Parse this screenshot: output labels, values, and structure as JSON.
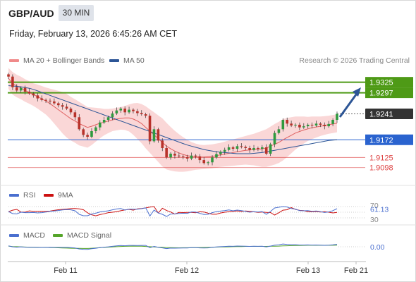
{
  "header": {
    "pair": "GBP/AUD",
    "timeframe": "30 MIN",
    "timestamp": "Friday, February 13, 2026 6:45:26 AM CET",
    "credit": "Research © 2026 Trading Central"
  },
  "legends": {
    "ma20": {
      "label": "MA 20 + Bollinger Bands",
      "color": "#f08a8a"
    },
    "ma50": {
      "label": "MA 50",
      "color": "#2c5596"
    },
    "rsi": {
      "label": "RSI",
      "color": "#4a6fcf"
    },
    "rsi_ma": {
      "label": "9MA",
      "color": "#cc1111"
    },
    "macd": {
      "label": "MACD",
      "color": "#4a6fcf"
    },
    "macd_signal": {
      "label": "MACD Signal",
      "color": "#55a52a"
    }
  },
  "chart_data": {
    "type": "candlestick",
    "y_range": [
      1.906,
      1.936
    ],
    "levels": [
      {
        "value": 1.9325,
        "label": "1.9325",
        "kind": "resistance",
        "color": "#4e9a16"
      },
      {
        "value": 1.9297,
        "label": "1.9297",
        "kind": "resistance",
        "color": "#4e9a16"
      },
      {
        "value": 1.9241,
        "label": "1.9241",
        "kind": "current",
        "color": "#333333"
      },
      {
        "value": 1.9172,
        "label": "1.9172",
        "kind": "pivot",
        "color": "#2a63cf"
      },
      {
        "value": 1.9125,
        "label": "1.9125",
        "kind": "support",
        "color": "#dd4444"
      },
      {
        "value": 1.9098,
        "label": "1.9098",
        "kind": "support",
        "color": "#dd4444"
      }
    ],
    "x_labels": [
      "Feb 11",
      "Feb 12",
      "Feb 13",
      "Feb 21"
    ],
    "closes": [
      1.934,
      1.9312,
      1.9303,
      1.931,
      1.93,
      1.9295,
      1.929,
      1.9282,
      1.9278,
      1.9276,
      1.9274,
      1.9269,
      1.9264,
      1.926,
      1.9255,
      1.9245,
      1.9232,
      1.92,
      1.9185,
      1.918,
      1.9195,
      1.9205,
      1.9218,
      1.9225,
      1.9232,
      1.9242,
      1.925,
      1.9255,
      1.9245,
      1.9252,
      1.9248,
      1.9243,
      1.924,
      1.9236,
      1.9168,
      1.92,
      1.917,
      1.915,
      1.9125,
      1.9135,
      1.913,
      1.9128,
      1.9126,
      1.9122,
      1.913,
      1.9128,
      1.9118,
      1.911,
      1.9112,
      1.9125,
      1.9134,
      1.914,
      1.9145,
      1.9152,
      1.9148,
      1.9155,
      1.9153,
      1.915,
      1.9145,
      1.915,
      1.9148,
      1.9152,
      1.9135,
      1.916,
      1.919,
      1.92,
      1.9225,
      1.9215,
      1.921,
      1.9212,
      1.9205,
      1.9208,
      1.9212,
      1.921,
      1.9215,
      1.9212,
      1.9208,
      1.9214,
      1.9225,
      1.9241
    ],
    "ma20": [
      1.9335,
      1.9322,
      1.9315,
      1.931,
      1.9303,
      1.9298,
      1.9292,
      1.9287,
      1.9281,
      1.9275,
      1.9268,
      1.926,
      1.9252,
      1.9244,
      1.9236,
      1.9228,
      1.9222,
      1.9215,
      1.921,
      1.9205,
      1.9208,
      1.9212,
      1.9216,
      1.9219,
      1.9222,
      1.9225,
      1.9227,
      1.9229,
      1.923,
      1.923,
      1.9227,
      1.9222,
      1.9215,
      1.9205,
      1.9195,
      1.9185,
      1.9175,
      1.9165,
      1.9155,
      1.9148,
      1.9142,
      1.9137,
      1.9133,
      1.913,
      1.9128,
      1.9127,
      1.9126,
      1.9126,
      1.9127,
      1.9128,
      1.913,
      1.9132,
      1.9134,
      1.9136,
      1.9138,
      1.914,
      1.9142,
      1.9144,
      1.9145,
      1.9146,
      1.9147,
      1.9148,
      1.915,
      1.9155,
      1.916,
      1.9165,
      1.9172,
      1.9178,
      1.9184,
      1.919,
      1.9194,
      1.9198,
      1.9201,
      1.9204,
      1.9206,
      1.9208,
      1.921,
      1.9212,
      1.9214,
      1.9216
    ],
    "band_width": [
      0.0028,
      0.003,
      0.003,
      0.003,
      0.003,
      0.003,
      0.003,
      0.0032,
      0.0034,
      0.0036,
      0.004,
      0.0045,
      0.005,
      0.0055,
      0.0058,
      0.0058,
      0.0058,
      0.0058,
      0.0056,
      0.0054,
      0.005,
      0.0045,
      0.004,
      0.0035,
      0.0032,
      0.003,
      0.003,
      0.003,
      0.0032,
      0.0036,
      0.0042,
      0.0048,
      0.0052,
      0.0056,
      0.0058,
      0.006,
      0.0062,
      0.0064,
      0.0062,
      0.0058,
      0.0054,
      0.005,
      0.0046,
      0.0042,
      0.0038,
      0.0035,
      0.0033,
      0.0032,
      0.0032,
      0.0032,
      0.0032,
      0.0032,
      0.0033,
      0.0034,
      0.0035,
      0.0036,
      0.0037,
      0.0038,
      0.004,
      0.0042,
      0.0045,
      0.0048,
      0.005,
      0.0052,
      0.0054,
      0.0055,
      0.0055,
      0.0052,
      0.0048,
      0.0044,
      0.004,
      0.0036,
      0.0032,
      0.003,
      0.0028,
      0.0026,
      0.0025,
      0.0024,
      0.0024,
      0.0024
    ],
    "ma50": [
      1.9316,
      1.9315,
      1.9314,
      1.9313,
      1.9311,
      1.9309,
      1.9306,
      1.9302,
      1.9298,
      1.9294,
      1.929,
      1.9286,
      1.9282,
      1.9278,
      1.9274,
      1.927,
      1.9266,
      1.9262,
      1.9258,
      1.9254,
      1.925,
      1.9246,
      1.9242,
      1.9238,
      1.9234,
      1.923,
      1.9226,
      1.9222,
      1.9218,
      1.9214,
      1.921,
      1.9206,
      1.9202,
      1.9198,
      1.9194,
      1.919,
      1.9186,
      1.9182,
      1.9178,
      1.9174,
      1.917,
      1.9166,
      1.9162,
      1.9158,
      1.9155,
      1.9152,
      1.9149,
      1.9146,
      1.9144,
      1.9142,
      1.914,
      1.9139,
      1.9138,
      1.9137,
      1.9136,
      1.9135,
      1.9135,
      1.9135,
      1.9135,
      1.9136,
      1.9137,
      1.9138,
      1.914,
      1.9142,
      1.9144,
      1.9146,
      1.9148,
      1.915,
      1.9152,
      1.9154,
      1.9156,
      1.9158,
      1.916,
      1.9162,
      1.9164,
      1.9166,
      1.9168,
      1.917,
      1.9171,
      1.9172
    ],
    "rsi": {
      "value": "61.13",
      "ticks": [
        "70",
        "30"
      ],
      "value_num": 61.13
    },
    "macd": {
      "value": "0.00",
      "value_num": 0.0
    }
  }
}
